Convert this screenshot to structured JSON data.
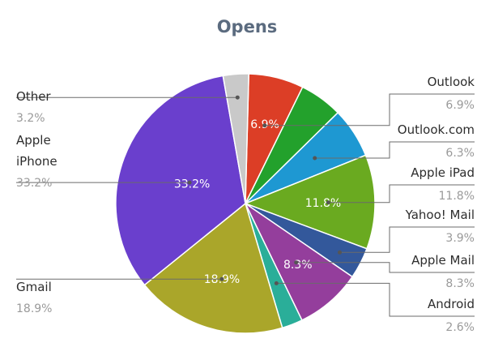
{
  "chart_data": {
    "type": "pie",
    "title": "Opens",
    "series": [
      {
        "name": "Outlook",
        "label_lines": [
          "Outlook"
        ],
        "value": 6.9,
        "value_label": "6.9%",
        "color": "#dc3e26",
        "inside_label": "6.9%"
      },
      {
        "name": "",
        "label_lines": [],
        "value": 5.4,
        "value_label": "",
        "color": "#23a12c",
        "inside_label": ""
      },
      {
        "name": "Outlook.com",
        "label_lines": [
          "Outlook.com"
        ],
        "value": 6.3,
        "value_label": "6.3%",
        "color": "#1e98d2",
        "inside_label": ""
      },
      {
        "name": "Apple iPad",
        "label_lines": [
          "Apple iPad"
        ],
        "value": 11.8,
        "value_label": "11.8%",
        "color": "#6aaa20",
        "inside_label": "11.8%"
      },
      {
        "name": "Yahoo! Mail",
        "label_lines": [
          "Yahoo! Mail"
        ],
        "value": 3.9,
        "value_label": "3.9%",
        "color": "#33589b",
        "inside_label": ""
      },
      {
        "name": "Apple Mail",
        "label_lines": [
          "Apple Mail"
        ],
        "value": 8.3,
        "value_label": "8.3%",
        "color": "#943e9c",
        "inside_label": "8.3%"
      },
      {
        "name": "Android",
        "label_lines": [
          "Android"
        ],
        "value": 2.6,
        "value_label": "2.6%",
        "color": "#2aae99",
        "inside_label": ""
      },
      {
        "name": "Gmail",
        "label_lines": [
          "Gmail"
        ],
        "value": 18.9,
        "value_label": "18.9%",
        "color": "#aaa62a",
        "inside_label": "18.9%"
      },
      {
        "name": "Apple iPhone",
        "label_lines": [
          "Apple",
          "iPhone"
        ],
        "value": 33.2,
        "value_label": "33.2%",
        "color": "#6a3fcd",
        "inside_label": "33.2%"
      },
      {
        "name": "Other",
        "label_lines": [
          "Other"
        ],
        "value": 3.2,
        "value_label": "3.2%",
        "color": "#c9c9c9",
        "inside_label": ""
      }
    ]
  }
}
